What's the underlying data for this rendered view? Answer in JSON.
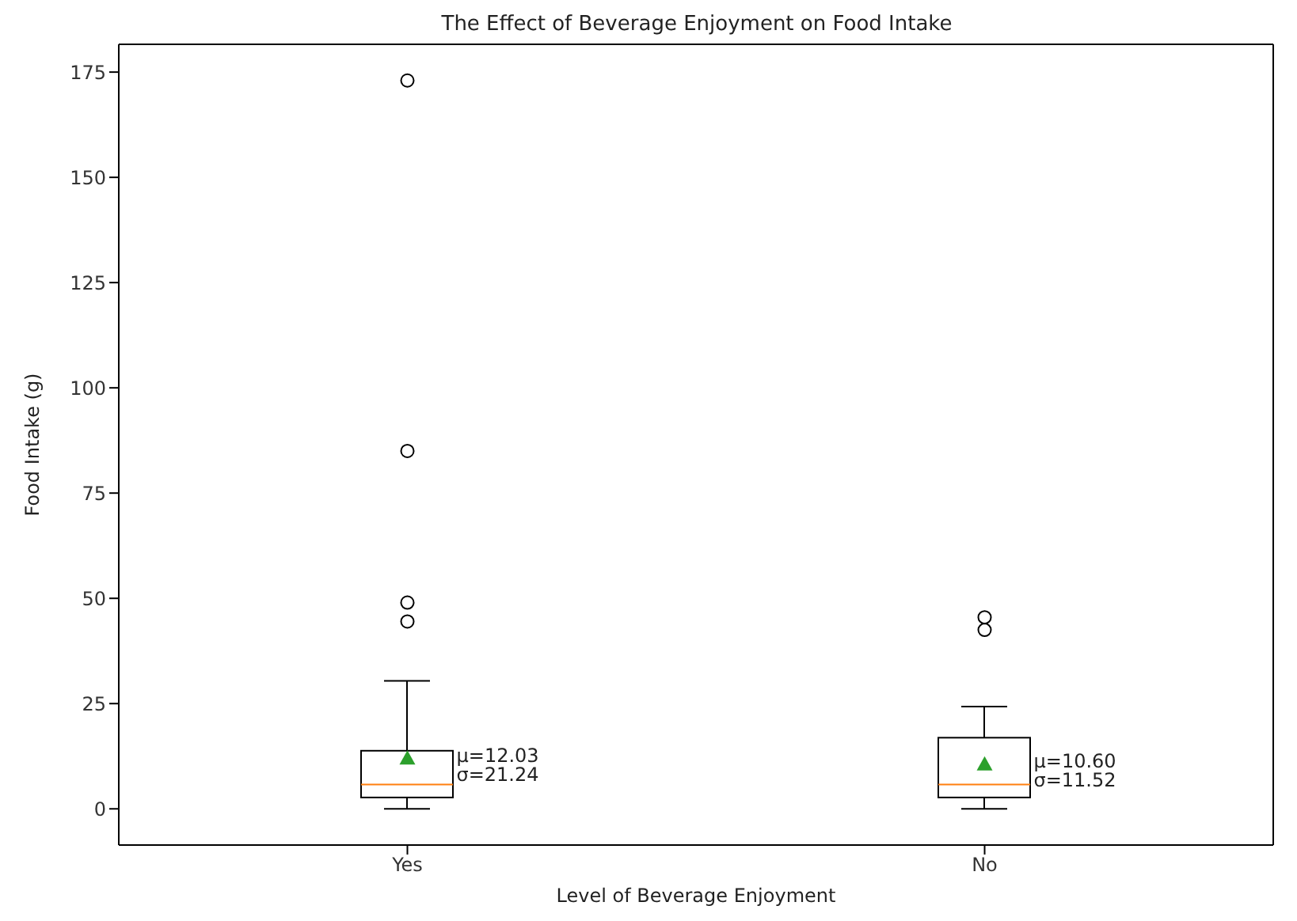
{
  "chart_data": {
    "type": "box",
    "title": "The Effect of Beverage Enjoyment on Food Intake",
    "xlabel": "Level of Beverage Enjoyment",
    "ylabel": "Food Intake (g)",
    "categories": [
      "Yes",
      "No"
    ],
    "boxes": [
      {
        "low": 0,
        "q1": 2.7,
        "median": 5.8,
        "q3": 13.8,
        "high": 30.4,
        "mean": 12.03,
        "outliers": [
          44.5,
          49,
          85,
          173
        ]
      },
      {
        "low": 0,
        "q1": 2.7,
        "median": 5.8,
        "q3": 16.9,
        "high": 24.3,
        "mean": 10.6,
        "outliers": [
          42.5,
          45.5
        ]
      }
    ],
    "ylim": [
      -8.6,
      181.6
    ],
    "yticks": [
      0,
      25,
      50,
      75,
      100,
      125,
      150,
      175
    ],
    "annotations": [
      "μ=12.03",
      "σ=21.24",
      "μ=10.60",
      "σ=11.52"
    ]
  }
}
